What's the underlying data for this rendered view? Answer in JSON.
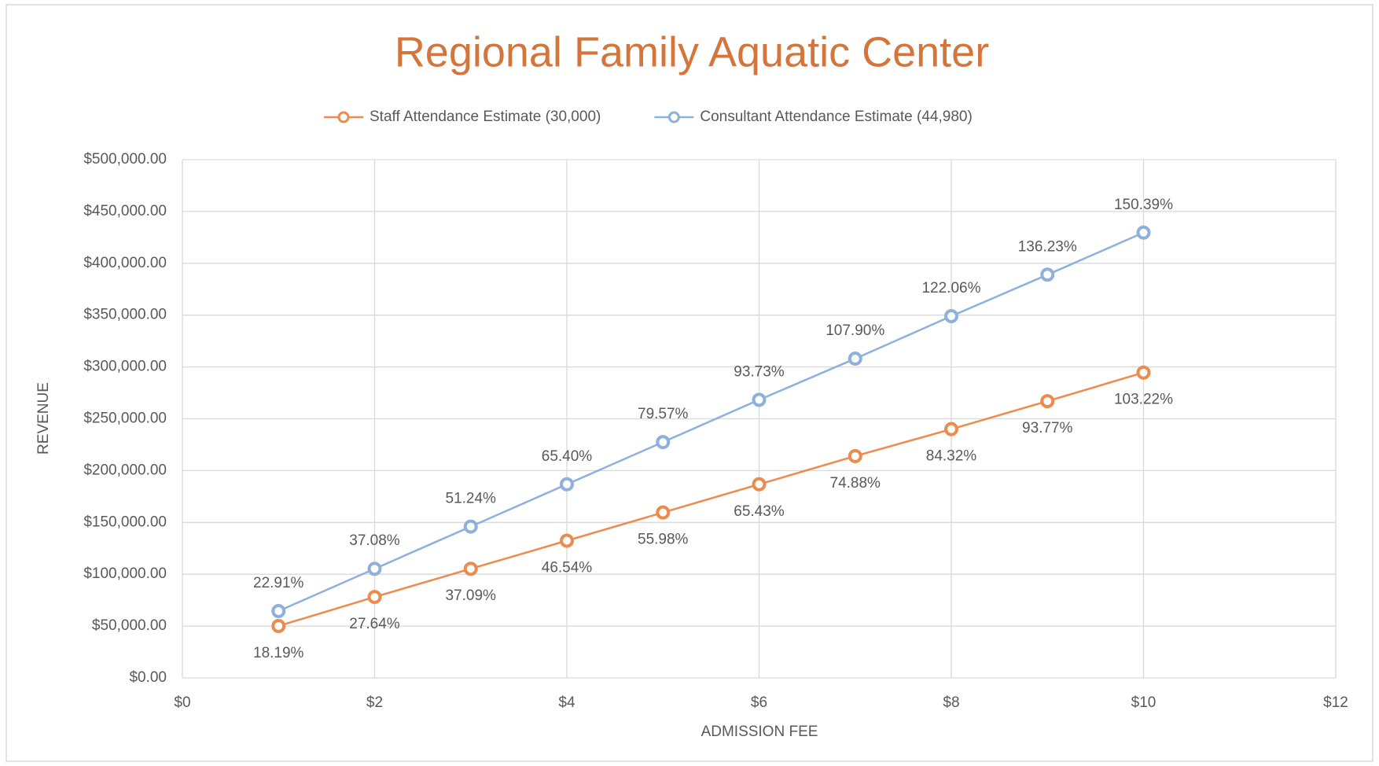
{
  "chart_data": {
    "type": "line",
    "title": "Regional Family Aquatic Center",
    "x_label": "ADMISSION FEE",
    "y_label": "REVENUE",
    "x": [
      1,
      2,
      3,
      4,
      5,
      6,
      7,
      8,
      9,
      10
    ],
    "series": [
      {
        "name": "Staff Attendance Estimate (30,000)",
        "color": "#ed8b4e",
        "values": [
          50100,
          78100,
          105300,
          132400,
          159600,
          186800,
          214000,
          240000,
          267000,
          294600
        ],
        "data_labels": [
          "18.19%",
          "27.64%",
          "37.09%",
          "46.54%",
          "55.98%",
          "65.43%",
          "74.88%",
          "84.32%",
          "93.77%",
          "103.22%"
        ]
      },
      {
        "name": "Consultant Attendance Estimate (44,980)",
        "color": "#8eb0dd",
        "values": [
          64500,
          105300,
          146000,
          186800,
          227500,
          268300,
          308000,
          349000,
          389000,
          429600
        ],
        "data_labels": [
          "22.91%",
          "37.08%",
          "51.24%",
          "65.40%",
          "79.57%",
          "93.73%",
          "107.90%",
          "122.06%",
          "136.23%",
          "150.39%"
        ]
      }
    ],
    "xlim": [
      0,
      12
    ],
    "xticks": [
      {
        "value": 0,
        "label": "$0"
      },
      {
        "value": 2,
        "label": "$2"
      },
      {
        "value": 4,
        "label": "$4"
      },
      {
        "value": 6,
        "label": "$6"
      },
      {
        "value": 8,
        "label": "$8"
      },
      {
        "value": 10,
        "label": "$10"
      },
      {
        "value": 12,
        "label": "$12"
      }
    ],
    "ylim": [
      0,
      500000
    ],
    "yticks": [
      {
        "value": 0,
        "label": "$0.00"
      },
      {
        "value": 50000,
        "label": "$50,000.00"
      },
      {
        "value": 100000,
        "label": "$100,000.00"
      },
      {
        "value": 150000,
        "label": "$150,000.00"
      },
      {
        "value": 200000,
        "label": "$200,000.00"
      },
      {
        "value": 250000,
        "label": "$250,000.00"
      },
      {
        "value": 300000,
        "label": "$300,000.00"
      },
      {
        "value": 350000,
        "label": "$350,000.00"
      },
      {
        "value": 400000,
        "label": "$400,000.00"
      },
      {
        "value": 450000,
        "label": "$450,000.00"
      },
      {
        "value": 500000,
        "label": "$500,000.00"
      }
    ],
    "grid": true,
    "legend": "top"
  }
}
